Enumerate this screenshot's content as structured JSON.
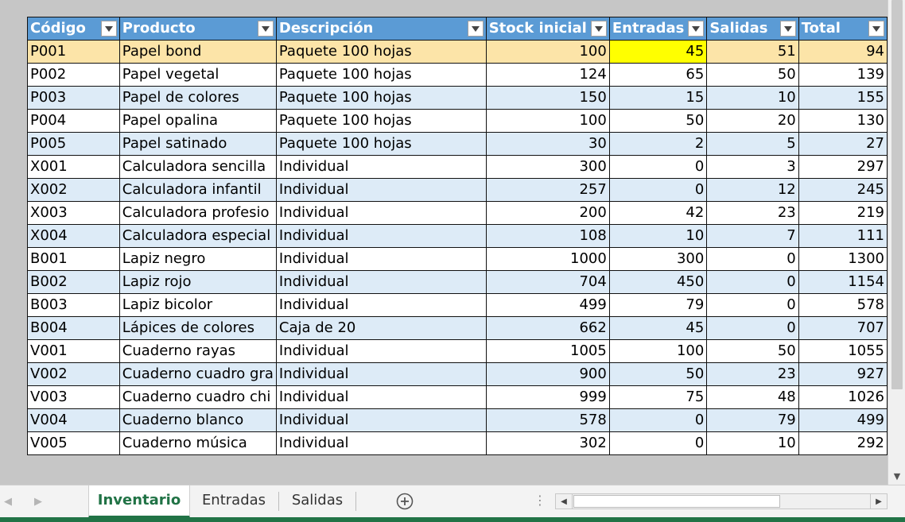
{
  "table": {
    "headers": [
      "Código",
      "Producto",
      "Descripción",
      "Stock inicial",
      "Entradas",
      "Salidas",
      "Total"
    ],
    "rows": [
      [
        "P001",
        "Papel bond",
        "Paquete 100 hojas",
        "100",
        "45",
        "51",
        "94"
      ],
      [
        "P002",
        "Papel vegetal",
        "Paquete 100 hojas",
        "124",
        "65",
        "50",
        "139"
      ],
      [
        "P003",
        "Papel de colores",
        "Paquete 100 hojas",
        "150",
        "15",
        "10",
        "155"
      ],
      [
        "P004",
        "Papel opalina",
        "Paquete 100 hojas",
        "100",
        "50",
        "20",
        "130"
      ],
      [
        "P005",
        "Papel satinado",
        "Paquete 100 hojas",
        "30",
        "2",
        "5",
        "27"
      ],
      [
        "X001",
        "Calculadora sencilla",
        "Individual",
        "300",
        "0",
        "3",
        "297"
      ],
      [
        "X002",
        "Calculadora infantil",
        "Individual",
        "257",
        "0",
        "12",
        "245"
      ],
      [
        "X003",
        "Calculadora profesio",
        "Individual",
        "200",
        "42",
        "23",
        "219"
      ],
      [
        "X004",
        "Calculadora especial",
        "Individual",
        "108",
        "10",
        "7",
        "111"
      ],
      [
        "B001",
        "Lapiz negro",
        "Individual",
        "1000",
        "300",
        "0",
        "1300"
      ],
      [
        "B002",
        "Lapiz rojo",
        "Individual",
        "704",
        "450",
        "0",
        "1154"
      ],
      [
        "B003",
        "Lapiz bicolor",
        "Individual",
        "499",
        "79",
        "0",
        "578"
      ],
      [
        "B004",
        "Lápices de colores",
        "Caja de 20",
        "662",
        "45",
        "0",
        "707"
      ],
      [
        "V001",
        "Cuaderno rayas",
        "Individual",
        "1005",
        "100",
        "50",
        "1055"
      ],
      [
        "V002",
        "Cuaderno cuadro gra",
        "Individual",
        "900",
        "50",
        "23",
        "927"
      ],
      [
        "V003",
        "Cuaderno cuadro chi",
        "Individual",
        "999",
        "75",
        "48",
        "1026"
      ],
      [
        "V004",
        "Cuaderno blanco",
        "Individual",
        "578",
        "0",
        "79",
        "499"
      ],
      [
        "V005",
        "Cuaderno música",
        "Individual",
        "302",
        "0",
        "10",
        "292"
      ]
    ],
    "selected_row": 0,
    "highlighted_cell": {
      "row": 0,
      "col": 4
    }
  },
  "sheet_tabs": {
    "active": "Inventario",
    "tabs": [
      "Inventario",
      "Entradas",
      "Salidas"
    ]
  },
  "icons": {
    "filter": "filter-dropdown-icon",
    "add_sheet": "plus-circle-icon",
    "nav_prev": "chevron-left-icon",
    "nav_next": "chevron-right-icon"
  },
  "colors": {
    "header_bg": "#5b9bd5",
    "band_bg": "#ddebf7",
    "selected_row_bg": "#fce4a8",
    "highlight_cell_bg": "#ffff00",
    "excel_green": "#217346"
  }
}
